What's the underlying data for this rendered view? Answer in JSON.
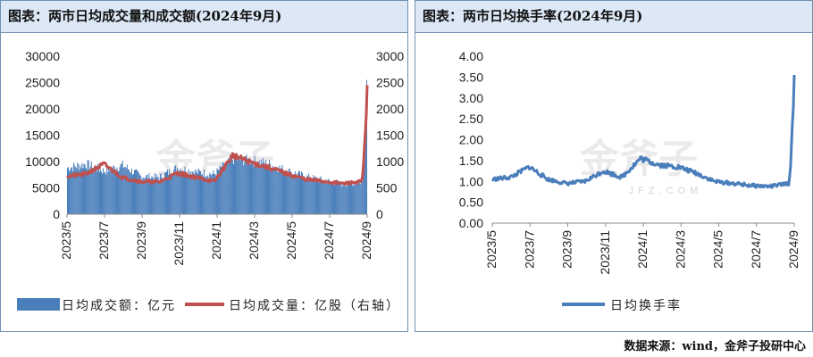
{
  "chart_data": [
    {
      "type": "bar",
      "title": "图表：两市日均成交量和成交额(2024年9月)",
      "x_tick_labels": [
        "2023/5",
        "2023/7",
        "2023/9",
        "2023/11",
        "2024/1",
        "2024/3",
        "2024/5",
        "2024/7",
        "2024/9"
      ],
      "y_left_ticks": [
        "30000",
        "25000",
        "20000",
        "15000",
        "10000",
        "5000",
        "0"
      ],
      "y_right_ticks": [
        "3000",
        "2500",
        "2000",
        "1500",
        "1000",
        "500",
        "0"
      ],
      "ylim_left": [
        0,
        30000
      ],
      "ylim_right": [
        0,
        3000
      ],
      "legend_position": "bottom",
      "grid": false,
      "series": [
        {
          "name": "日均成交额：亿元",
          "type": "bar",
          "axis": "left",
          "color": "#4a7ebb",
          "x": [
            "2023/5",
            "2023/6",
            "2023/7",
            "2023/8",
            "2023/9",
            "2023/10",
            "2023/11",
            "2023/12",
            "2024/1",
            "2024/2",
            "2024/3",
            "2024/4",
            "2024/5",
            "2024/6",
            "2024/7",
            "2024/8",
            "2024/9",
            "2024/9 end"
          ],
          "values": [
            8800,
            9500,
            8200,
            9300,
            7200,
            7000,
            8800,
            8000,
            7600,
            10500,
            10200,
            9500,
            8200,
            7100,
            6400,
            5700,
            6100,
            25500
          ]
        },
        {
          "name": "日均成交量：亿股（右轴）",
          "type": "line",
          "axis": "right",
          "color": "#c0504d",
          "x": [
            "2023/5",
            "2023/6",
            "2023/7",
            "2023/8",
            "2023/9",
            "2023/10",
            "2023/11",
            "2023/12",
            "2024/1",
            "2024/2",
            "2024/3",
            "2024/4",
            "2024/5",
            "2024/6",
            "2024/7",
            "2024/8",
            "2024/9",
            "2024/9 end"
          ],
          "values": [
            720,
            760,
            950,
            700,
            620,
            610,
            780,
            700,
            620,
            1120,
            980,
            880,
            760,
            660,
            620,
            580,
            620,
            2450
          ]
        }
      ]
    },
    {
      "type": "line",
      "title": "图表：两市日均换手率(2024年9月)",
      "x_tick_labels": [
        "2023/5",
        "2023/7",
        "2023/9",
        "2023/11",
        "2024/1",
        "2024/3",
        "2024/5",
        "2024/7",
        "2024/9"
      ],
      "y_ticks": [
        "4.00",
        "3.50",
        "3.00",
        "2.50",
        "2.00",
        "1.50",
        "1.00",
        "0.50",
        "0.00"
      ],
      "ylim": [
        0,
        4
      ],
      "legend_position": "bottom",
      "grid": false,
      "series": [
        {
          "name": "日均换手率",
          "color": "#4a7ebb",
          "x": [
            "2023/5",
            "2023/6",
            "2023/7",
            "2023/8",
            "2023/9",
            "2023/10",
            "2023/11",
            "2023/12",
            "2024/1",
            "2024/2",
            "2024/3",
            "2024/4",
            "2024/5",
            "2024/6",
            "2024/7",
            "2024/8",
            "2024/9",
            "2024/9 end"
          ],
          "values": [
            1.05,
            1.1,
            1.35,
            1.05,
            0.95,
            1.0,
            1.25,
            1.1,
            1.55,
            1.4,
            1.35,
            1.2,
            1.0,
            0.95,
            0.9,
            0.88,
            0.95,
            3.55
          ]
        }
      ]
    }
  ],
  "watermark": {
    "text": "金斧子",
    "sub": "JFZ.COM"
  },
  "source": "数据来源：wind，金斧子投研中心"
}
